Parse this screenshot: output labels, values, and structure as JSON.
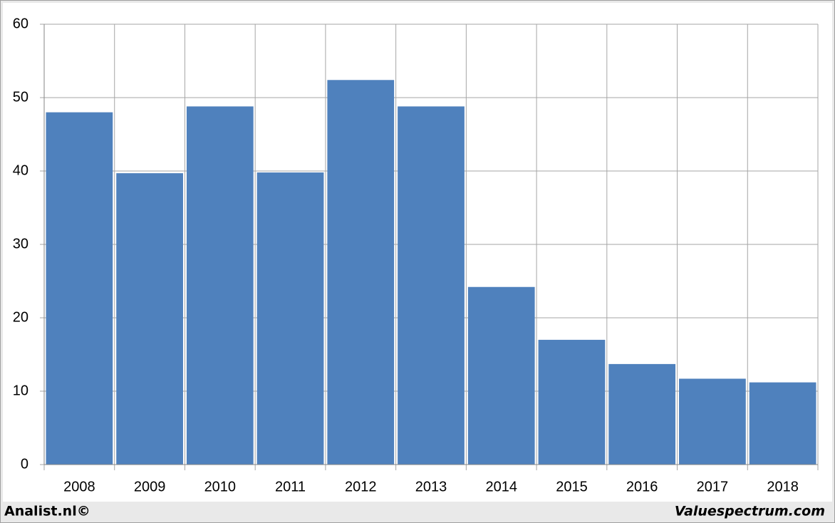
{
  "chart_data": {
    "type": "bar",
    "categories": [
      "2008",
      "2009",
      "2010",
      "2011",
      "2012",
      "2013",
      "2014",
      "2015",
      "2016",
      "2017",
      "2018"
    ],
    "values": [
      48,
      39.7,
      48.8,
      39.8,
      52.4,
      48.8,
      24.2,
      17,
      13.7,
      11.7,
      11.2
    ],
    "color": "#4f81bd",
    "ylim": [
      0,
      60
    ],
    "yticks": [
      0,
      10,
      20,
      30,
      40,
      50,
      60
    ],
    "grid": true,
    "annotations": [
      "Analist.nl©",
      "Valuespectrum.com"
    ]
  }
}
